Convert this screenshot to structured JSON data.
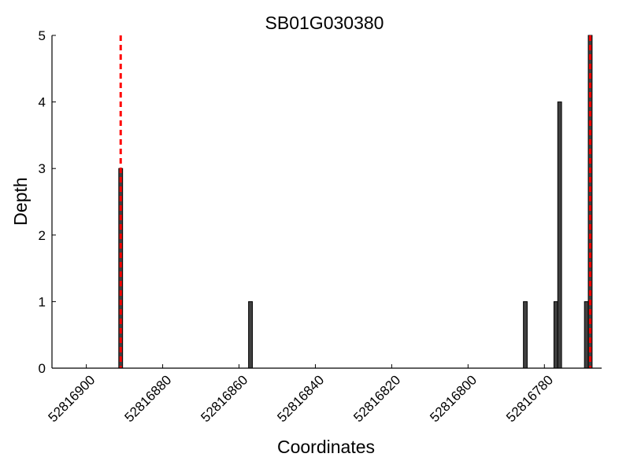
{
  "chart_data": {
    "type": "bar",
    "title": "SB01G030380",
    "xlabel": "Coordinates",
    "ylabel": "Depth",
    "xlim": [
      52816909,
      52816765
    ],
    "ylim": [
      0,
      5
    ],
    "x_ticks": [
      52816900,
      52816880,
      52816860,
      52816840,
      52816820,
      52816800,
      52816780
    ],
    "y_ticks": [
      0,
      1,
      2,
      3,
      4,
      5
    ],
    "bar_width": 1,
    "bars": [
      {
        "x": 52816891,
        "value": 3
      },
      {
        "x": 52816857,
        "value": 1
      },
      {
        "x": 52816785,
        "value": 1
      },
      {
        "x": 52816777,
        "value": 1
      },
      {
        "x": 52816776,
        "value": 4
      },
      {
        "x": 52816769,
        "value": 1
      },
      {
        "x": 52816768,
        "value": 5
      }
    ],
    "reference_lines": [
      52816891,
      52816768
    ],
    "grid": false,
    "colors": {
      "bar": "#404040",
      "reference_line": "#ff0000",
      "axis": "#000000"
    }
  }
}
